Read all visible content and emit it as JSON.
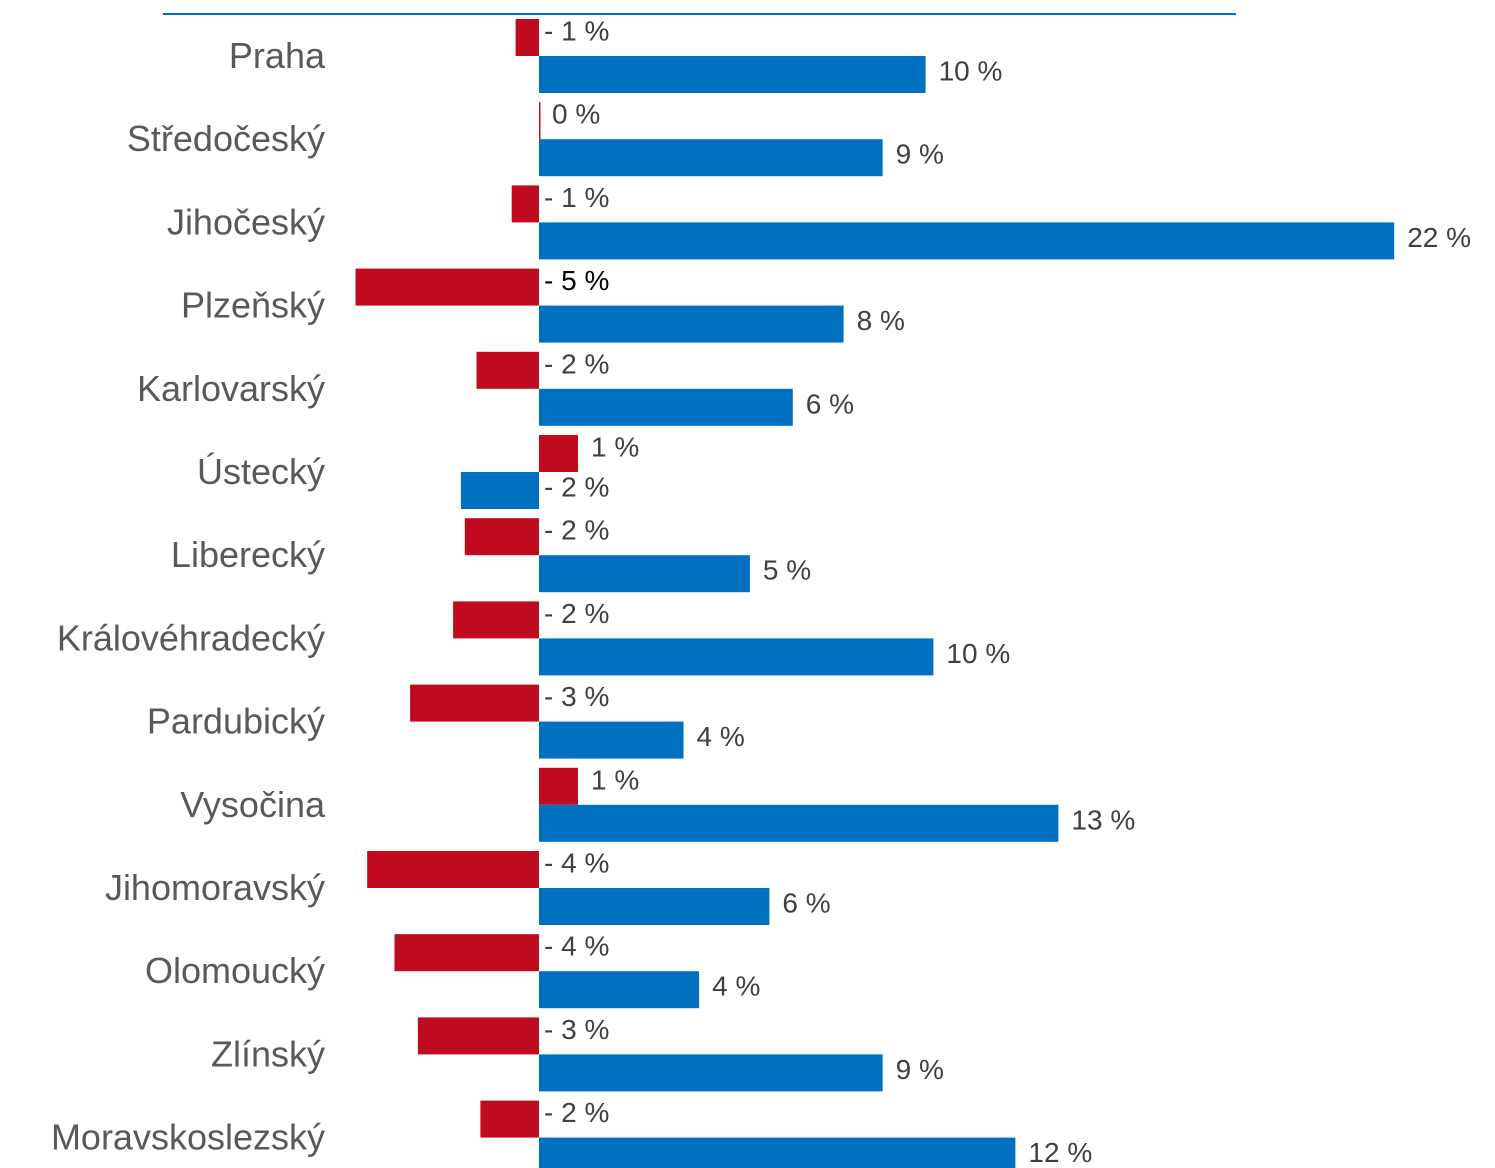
{
  "chart_data": {
    "type": "bar",
    "orientation": "horizontal",
    "categories": [
      "Praha",
      "Středočeský",
      "Jihočeský",
      "Plzeňský",
      "Karlovarský",
      "Ústecký",
      "Liberecký",
      "Královéhradecký",
      "Pardubický",
      "Vysočina",
      "Jihomoravský",
      "Olomoucký",
      "Zlínský",
      "Moravskoslezský"
    ],
    "series": [
      {
        "color": "#c00a1e",
        "values": [
          -0.6,
          0,
          -0.7,
          -4.7,
          -1.6,
          1.0,
          -1.9,
          -2.2,
          -3.3,
          1.0,
          -4.4,
          -3.7,
          -3.1,
          -1.5
        ],
        "labels": [
          "- 1 %",
          "0 %",
          "- 1 %",
          "- 5 %",
          "- 2 %",
          "1 %",
          "- 2 %",
          "- 2 %",
          "- 3 %",
          "1 %",
          "- 4 %",
          "- 4 %",
          "- 3 %",
          "- 2 %"
        ]
      },
      {
        "color": "#0070c0",
        "values": [
          9.9,
          8.8,
          21.9,
          7.8,
          6.5,
          -2.0,
          5.4,
          10.1,
          3.7,
          13.3,
          5.9,
          4.1,
          8.8,
          12.2
        ],
        "labels": [
          "10 %",
          "9 %",
          "22 %",
          "8 %",
          "6 %",
          "- 2 %",
          "5 %",
          "10 %",
          "4 %",
          "13 %",
          "6 %",
          "4 %",
          "9 %",
          "12 %"
        ]
      }
    ],
    "title_line_color": "#0070c0",
    "legend": "none",
    "grid": false
  }
}
